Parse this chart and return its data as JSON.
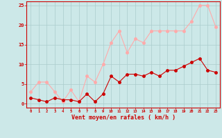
{
  "x": [
    0,
    1,
    2,
    3,
    4,
    5,
    6,
    7,
    8,
    9,
    10,
    11,
    12,
    13,
    14,
    15,
    16,
    17,
    18,
    19,
    20,
    21,
    22,
    23
  ],
  "wind_avg": [
    1.5,
    1.0,
    0.5,
    1.5,
    1.0,
    1.0,
    0.5,
    2.5,
    0.5,
    2.5,
    7.0,
    5.5,
    7.5,
    7.5,
    7.0,
    8.0,
    7.0,
    8.5,
    8.5,
    9.5,
    10.5,
    11.5,
    8.5,
    8.0
  ],
  "wind_gust": [
    3.0,
    5.5,
    5.5,
    3.0,
    0.5,
    3.5,
    0.5,
    7.0,
    5.5,
    10.0,
    15.5,
    18.5,
    13.0,
    16.5,
    15.5,
    18.5,
    18.5,
    18.5,
    18.5,
    18.5,
    21.0,
    25.0,
    25.0,
    19.5
  ],
  "avg_color": "#cc0000",
  "gust_color": "#ffaaaa",
  "bg_color": "#cce8e8",
  "grid_color": "#aacccc",
  "ylim": [
    -1,
    26
  ],
  "xlim": [
    -0.5,
    23.5
  ],
  "yticks": [
    0,
    5,
    10,
    15,
    20,
    25
  ],
  "xticks": [
    0,
    1,
    2,
    3,
    4,
    5,
    6,
    7,
    8,
    9,
    10,
    11,
    12,
    13,
    14,
    15,
    16,
    17,
    18,
    19,
    20,
    21,
    22,
    23
  ],
  "xlabel": "Vent moyen/en rafales ( km/h )",
  "xlabel_color": "#cc0000",
  "tick_color": "#cc0000",
  "spine_color": "#cc0000",
  "marker_size": 2.5,
  "linewidth": 0.8
}
